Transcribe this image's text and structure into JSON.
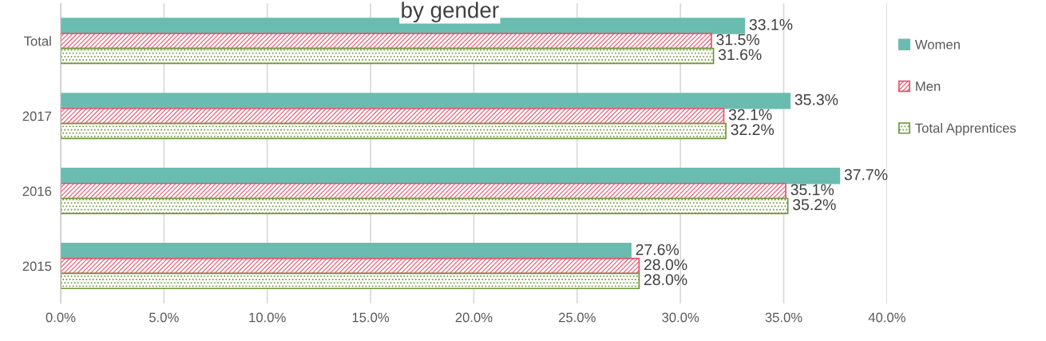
{
  "chart_data": {
    "type": "bar",
    "orientation": "horizontal",
    "title": "by gender",
    "categories": [
      "Total",
      "2017",
      "2016",
      "2015"
    ],
    "series": [
      {
        "name": "Women",
        "color": "#6bbcb0",
        "values": [
          33.1,
          35.3,
          37.7,
          27.6
        ],
        "value_labels": [
          "33.1%",
          "35.3%",
          "37.7%",
          "27.6%"
        ]
      },
      {
        "name": "Men",
        "color": "#e8506a",
        "values": [
          31.5,
          32.1,
          35.1,
          28.0
        ],
        "value_labels": [
          "31.5%",
          "32.1%",
          "35.1%",
          "28.0%"
        ]
      },
      {
        "name": "Total Apprentices",
        "color": "#70963a",
        "values": [
          31.6,
          32.2,
          35.2,
          28.0
        ],
        "value_labels": [
          "31.6%",
          "32.2%",
          "35.2%",
          "28.0%"
        ]
      }
    ],
    "xlim": [
      0,
      40
    ],
    "xticks": [
      {
        "value": 0,
        "label": "0.0%"
      },
      {
        "value": 5,
        "label": "5.0%"
      },
      {
        "value": 10,
        "label": "10.0%"
      },
      {
        "value": 15,
        "label": "15.0%"
      },
      {
        "value": 20,
        "label": "20.0%"
      },
      {
        "value": 25,
        "label": "25.0%"
      },
      {
        "value": 30,
        "label": "30.0%"
      },
      {
        "value": 35,
        "label": "35.0%"
      },
      {
        "value": 40,
        "label": "40.0%"
      }
    ],
    "grid": "x",
    "legend": "right"
  }
}
